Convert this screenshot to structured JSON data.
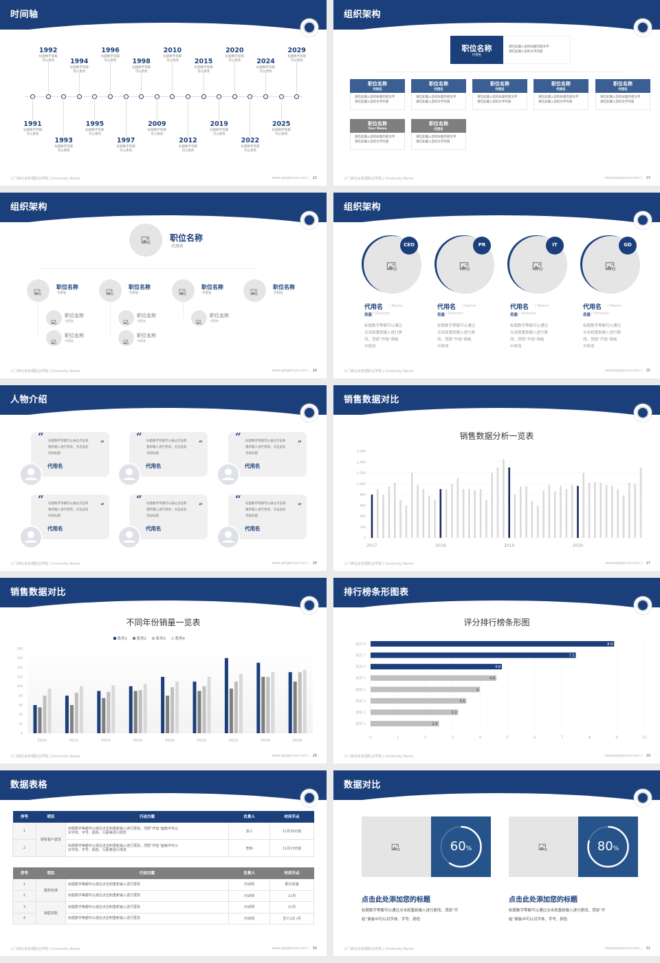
{
  "footer": {
    "left": "三门峡社会管理职业学院 | University Name",
    "right": "www.pptgenius.com"
  },
  "colors": {
    "navy": "#1b3f7b",
    "gray_dark": "#7f7f7f",
    "gray_mid": "#bfbfbf",
    "gray_light": "#d9d9d9",
    "placeholder": "#e6e5e6"
  },
  "slides": [
    {
      "title": "时间轴",
      "page": "22"
    },
    {
      "title": "组织架构",
      "page": "23"
    },
    {
      "title": "组织架构",
      "page": "24"
    },
    {
      "title": "组织架构",
      "page": "25"
    },
    {
      "title": "人物介绍",
      "page": "26"
    },
    {
      "title": "销售数据对比",
      "page": "27"
    },
    {
      "title": "销售数据对比",
      "page": "28"
    },
    {
      "title": "排行榜条形图表",
      "page": "29"
    },
    {
      "title": "数据表格",
      "page": "30"
    },
    {
      "title": "数据对比",
      "page": "31"
    }
  ],
  "timeline": {
    "items": [
      {
        "year": "1991",
        "caption": [
          "标题数字等都",
          "可以更改"
        ]
      },
      {
        "year": "1992",
        "caption": [
          "标题数字等都",
          "可以更改"
        ]
      },
      {
        "year": "1993",
        "caption": [
          "标题数字等都",
          "可以更改"
        ]
      },
      {
        "year": "1994",
        "caption": [
          "标题数字等都",
          "可以更改"
        ]
      },
      {
        "year": "1995",
        "caption": [
          "标题数字等都",
          "可以更改"
        ]
      },
      {
        "year": "1996",
        "caption": [
          "标题数字等都",
          "可以更改"
        ]
      },
      {
        "year": "1997",
        "caption": [
          "标题数字等都",
          "可以更改"
        ]
      },
      {
        "year": "1998",
        "caption": [
          "标题数字等都",
          "可以更改"
        ]
      },
      {
        "year": "2009",
        "caption": [
          "标题数字等都",
          "可以更改"
        ]
      },
      {
        "year": "2010",
        "caption": [
          "标题数字等都",
          "可以更改"
        ]
      },
      {
        "year": "2012",
        "caption": [
          "标题数字等都",
          "可以更改"
        ]
      },
      {
        "year": "2015",
        "caption": [
          "标题数字等都",
          "可以更改"
        ]
      },
      {
        "year": "2019",
        "caption": [
          "标题数字等都",
          "可以更改"
        ]
      },
      {
        "year": "2020",
        "caption": [
          "标题数字等都",
          "可以更改"
        ]
      },
      {
        "year": "2022",
        "caption": [
          "标题数字等都",
          "可以更改"
        ]
      },
      {
        "year": "2024",
        "caption": [
          "标题数字等都",
          "可以更改"
        ]
      },
      {
        "year": "2025",
        "caption": [
          "标题数字等都",
          "可以更改"
        ]
      },
      {
        "year": "2029",
        "caption": [
          "标题数字等都",
          "可以更改"
        ]
      }
    ]
  },
  "org_boxes": {
    "top": {
      "title": "职位名称",
      "sub": "代用名",
      "desc": [
        "请在此输入您的标题内容文字",
        "请在此输入您的文字内容"
      ]
    },
    "cards": [
      {
        "title": "职位名称",
        "sub": "代用名",
        "tone": "blue",
        "desc": [
          "请在此输入您的标题内容文字",
          "请在此输入您的文字内容"
        ]
      },
      {
        "title": "职位名称",
        "sub": "代用名",
        "tone": "blue",
        "desc": [
          "请在此输入您的标题内容文字",
          "请在此输入您的文字内容"
        ]
      },
      {
        "title": "职位名称",
        "sub": "代用名",
        "tone": "blue",
        "desc": [
          "请在此输入您的标题内容文字",
          "请在此输入您的文字内容"
        ]
      },
      {
        "title": "职位名称",
        "sub": "代用名",
        "tone": "blue",
        "desc": [
          "请在此输入您的标题内容文字",
          "请在此输入您的文字内容"
        ]
      },
      {
        "title": "职位名称",
        "sub": "代用名",
        "tone": "blue",
        "desc": [
          "请在此输入您的标题内容文字",
          "请在此输入您的文字内容"
        ]
      },
      {
        "title": "职位名称",
        "sub": "Your Name",
        "tone": "gray",
        "desc": [
          "请在此输入您的标题内容文字",
          "请在此输入您的文字内容"
        ]
      },
      {
        "title": "职位名称",
        "sub": "代用名",
        "tone": "gray",
        "desc": [
          "请在此输入您的标题内容文字",
          "请在此输入您的文字内容"
        ]
      }
    ]
  },
  "org_tree": {
    "top": {
      "title": "职位名称",
      "sub": "代用名"
    },
    "level1": [
      {
        "title": "职位名称",
        "sub": "代用名",
        "children": [
          {
            "title": "职位名称",
            "sub": "代用名"
          },
          {
            "title": "职位名称",
            "sub": "代用名"
          }
        ]
      },
      {
        "title": "职位名称",
        "sub": "代用名",
        "children": [
          {
            "title": "职位名称",
            "sub": "代用名"
          },
          {
            "title": "职位名称",
            "sub": "代用名"
          }
        ]
      },
      {
        "title": "职位名称",
        "sub": "代用名",
        "children": [
          {
            "title": "职位名称",
            "sub": "代用名"
          }
        ]
      },
      {
        "title": "职位名称",
        "sub": "代用名",
        "children": []
      }
    ]
  },
  "team": [
    {
      "badge": "CEO",
      "name": "代用名",
      "name_en": "/ Name",
      "role": "总监",
      "role_en": "/  Director",
      "desc": [
        "标题数字等都可以通过",
        "点击和重新输入进行更",
        "改，顶部“开始”面板",
        "中修改"
      ]
    },
    {
      "badge": "PR",
      "name": "代用名",
      "name_en": "/ Name",
      "role": "总监",
      "role_en": "/  Director",
      "desc": [
        "标题数字等都可以通过",
        "点击和重新输入进行更",
        "改，顶部“开始”面板",
        "中修改"
      ]
    },
    {
      "badge": "IT",
      "name": "代用名",
      "name_en": "/ Name",
      "role": "总监",
      "role_en": "/  Director",
      "desc": [
        "标题数字等都可以通过",
        "点击和重新输入进行更",
        "改，顶部“开始”面板",
        "中修改"
      ]
    },
    {
      "badge": "GD",
      "name": "代用名",
      "name_en": "/ Name",
      "role": "总监",
      "role_en": "/  Director",
      "desc": [
        "标题数字等都可以通过",
        "点击和重新输入进行更",
        "改，顶部“开始”面板",
        "中修改"
      ]
    }
  ],
  "quotes": [
    {
      "text": [
        "标题数字等都可以通过点击和",
        "重新输入进行更改，点击此处",
        "添加标题"
      ],
      "name": "代用名"
    },
    {
      "text": [
        "标题数字等都可以通过点击和",
        "重新输入进行更改，点击此处",
        "添加标题"
      ],
      "name": "代用名"
    },
    {
      "text": [
        "标题数字等都可以通过点击和",
        "重新输入进行更改，点击此处",
        "添加标题"
      ],
      "name": "代用名"
    },
    {
      "text": [
        "标题数字等都可以通过点击和",
        "重新输入进行更改，点击此处",
        "添加标题"
      ],
      "name": "代用名"
    },
    {
      "text": [
        "标题数字等都可以通过点击和",
        "重新输入进行更改，点击此处",
        "添加标题"
      ],
      "name": "代用名"
    },
    {
      "text": [
        "标题数字等都可以通过点击和",
        "重新输入进行更改，点击此处",
        "添加标题"
      ],
      "name": "代用名"
    }
  ],
  "chart_data": [
    {
      "type": "bar",
      "title": "销售数据分析一览表",
      "x_tick_labels": [
        "2017",
        "2018",
        "2019",
        "2020"
      ],
      "values": [
        800,
        900,
        800,
        950,
        1020,
        700,
        600,
        1200,
        980,
        900,
        780,
        700,
        900,
        900,
        1000,
        1100,
        900,
        900,
        880,
        900,
        700,
        1200,
        1300,
        1450,
        1300,
        800,
        950,
        960,
        680,
        590,
        870,
        980,
        860,
        960,
        900,
        980,
        960,
        1200,
        1020,
        1030,
        1020,
        980,
        960,
        900,
        780,
        1020,
        1000,
        1300
      ],
      "highlight_indices": [
        0,
        12,
        24,
        36
      ],
      "highlight_color": "#1b2a5c",
      "bar_color": "#d9d9d9",
      "ylim": [
        0,
        1600
      ],
      "y_ticks": [
        "0",
        "200",
        "400",
        "600",
        "800",
        "1,000",
        "1,200",
        "1,400",
        "1,600"
      ],
      "grid": true
    },
    {
      "type": "bar",
      "title": "不同年份销量一览表",
      "categories": [
        "2010",
        "2012",
        "2014",
        "2016",
        "2018",
        "2020",
        "2022",
        "2024",
        "2026"
      ],
      "series": [
        {
          "name": "系列1",
          "color": "#1b3f7b",
          "values": [
            60,
            80,
            90,
            100,
            120,
            110,
            160,
            150,
            130
          ]
        },
        {
          "name": "系列2",
          "color": "#7f7f7f",
          "values": [
            55,
            60,
            75,
            90,
            80,
            90,
            95,
            120,
            110
          ]
        },
        {
          "name": "系列3",
          "color": "#bfbfbf",
          "values": [
            80,
            86,
            88,
            92,
            98,
            100,
            110,
            120,
            130
          ]
        },
        {
          "name": "系列4",
          "color": "#d9d9d9",
          "values": [
            95,
            100,
            102,
            105,
            110,
            120,
            126,
            130,
            135
          ]
        }
      ],
      "ylim": [
        0,
        180
      ],
      "y_ticks": [
        "0",
        "20",
        "40",
        "60",
        "80",
        "100",
        "120",
        "140",
        "160",
        "180"
      ],
      "legend": "top"
    },
    {
      "type": "bar",
      "orientation": "horizontal",
      "title": "评分排行榜条形图",
      "categories": [
        "类别 1",
        "类别 2",
        "类别 3",
        "类别 4",
        "系列 5",
        "系列 6",
        "系列 7",
        "系列 8"
      ],
      "values": [
        2.5,
        3.2,
        3.5,
        4,
        4.6,
        4.8,
        7.5,
        8.9
      ],
      "colors": [
        "#bfbfbf",
        "#bfbfbf",
        "#bfbfbf",
        "#bfbfbf",
        "#bfbfbf",
        "#1b3f7b",
        "#1b3f7b",
        "#1b3f7b"
      ],
      "xlim": [
        0,
        10
      ],
      "x_ticks": [
        "0",
        "1",
        "2",
        "3",
        "4",
        "5",
        "6",
        "7",
        "8",
        "9",
        "10"
      ],
      "grid": true
    }
  ],
  "tables": [
    {
      "header_color": "#1b3f7b",
      "headers": [
        "序号",
        "项目",
        "行动方案",
        "负责人",
        "时间节点"
      ],
      "rows": [
        {
          "no": "1",
          "item": "保有客户激活",
          "plan": [
            "标题数字等都可以通过点击和重新输入进行更改，顶部“开始”面板中可以",
            "对字体、字号、颜色、行距等进行修改"
          ],
          "owner": "张三",
          "time": "11月30日前"
        },
        {
          "no": "2",
          "item": "",
          "plan": [
            "标题数字等都可以通过点击和重新输入进行更改，顶部“开始”面板中可以",
            "对字体、字号、颜色、行距等进行修改"
          ],
          "owner": "李四",
          "time": "11月15日前"
        }
      ],
      "spans": [
        {
          "item": "保有客户激活",
          "rows": 2
        }
      ]
    },
    {
      "header_color": "#7f7f7f",
      "headers": [
        "序号",
        "项目",
        "行动方案",
        "负责人",
        "时间节点"
      ],
      "rows": [
        {
          "no": "1",
          "plan": [
            "标题数字等都可以通过点击和重新输入进行更改"
          ],
          "owner": "内训师",
          "time": "即日实施"
        },
        {
          "no": "2",
          "plan": [
            "标题数字等都可以通过点击和重新输入进行更改"
          ],
          "owner": "内训师",
          "time": "11月"
        },
        {
          "no": "3",
          "plan": [
            "标题数字等都可以通过点击和重新输入进行更改"
          ],
          "owner": "内训师",
          "time": "11月"
        },
        {
          "no": "4",
          "plan": [
            "标题数字等都可以通过点击和重新输入进行更改"
          ],
          "owner": "内训师",
          "time": "至少1次 /月"
        }
      ],
      "spans": [
        {
          "item": "服务标准",
          "rows": 2
        },
        {
          "item": "销售技能",
          "rows": 2
        }
      ]
    }
  ],
  "stats": [
    {
      "percent": 60,
      "value": "60",
      "unit": "%",
      "title": "点击此处添加您的标题",
      "desc": [
        "标题数字等都可以通过点击和重新输入进行更改，顶部“开",
        "始”面板中可以对字体、字号、颜色"
      ]
    },
    {
      "percent": 80,
      "value": "80",
      "unit": "%",
      "title": "点击此处添加您的标题",
      "desc": [
        "标题数字等都可以通过点击和重新输入进行更改，顶部“开",
        "始”面板中可以对字体、字号、颜色"
      ]
    }
  ]
}
